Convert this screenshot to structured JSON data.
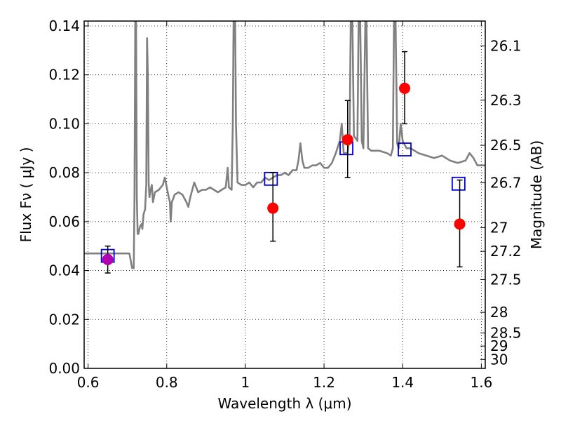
{
  "chart_data": {
    "type": "scatter",
    "xlabel": "Wavelength  λ (μm)",
    "ylabel": "Flux  Fν ( μJy )",
    "y2label": "Magnitude (AB)",
    "xlim": [
      0.59,
      1.61
    ],
    "ylim": [
      0.0,
      0.142
    ],
    "grid": true,
    "xticks": [
      {
        "value": 0.6,
        "label": "0.6"
      },
      {
        "value": 0.8,
        "label": "0.8"
      },
      {
        "value": 1.0,
        "label": "1"
      },
      {
        "value": 1.2,
        "label": "1.2"
      },
      {
        "value": 1.4,
        "label": "1.4"
      },
      {
        "value": 1.6,
        "label": "1.6"
      }
    ],
    "yticks": [
      {
        "value": 0.0,
        "label": "0.00"
      },
      {
        "value": 0.02,
        "label": "0.02"
      },
      {
        "value": 0.04,
        "label": "0.04"
      },
      {
        "value": 0.06,
        "label": "0.06"
      },
      {
        "value": 0.08,
        "label": "0.08"
      },
      {
        "value": 0.1,
        "label": "0.10"
      },
      {
        "value": 0.12,
        "label": "0.12"
      },
      {
        "value": 0.14,
        "label": "0.14"
      }
    ],
    "y2ticks": [
      {
        "mag": 26.1,
        "label": "26.1"
      },
      {
        "mag": 26.3,
        "label": "26.3"
      },
      {
        "mag": 26.5,
        "label": "26.5"
      },
      {
        "mag": 26.7,
        "label": "26.7"
      },
      {
        "mag": 27.0,
        "label": "27"
      },
      {
        "mag": 27.2,
        "label": "27.2"
      },
      {
        "mag": 27.5,
        "label": "27.5"
      },
      {
        "mag": 28.0,
        "label": "28"
      },
      {
        "mag": 28.5,
        "label": "28.5"
      },
      {
        "mag": 29.0,
        "label": "29"
      },
      {
        "mag": 30.0,
        "label": "30"
      }
    ],
    "colors": {
      "spectrum": "#808080",
      "observed": "#ff0000",
      "model": "#0000cc",
      "errorbar": "#000000",
      "overlap": "#b000b0"
    },
    "series": [
      {
        "kind": "model-spectrum",
        "points": [
          [
            0.59,
            0.047
          ],
          [
            0.63,
            0.047
          ],
          [
            0.66,
            0.047
          ],
          [
            0.69,
            0.047
          ],
          [
            0.705,
            0.047
          ],
          [
            0.712,
            0.041
          ],
          [
            0.716,
            0.041
          ],
          [
            0.718,
            0.07
          ],
          [
            0.72,
            0.142
          ],
          [
            0.722,
            0.142
          ],
          [
            0.724,
            0.07
          ],
          [
            0.726,
            0.055
          ],
          [
            0.728,
            0.055
          ],
          [
            0.732,
            0.058
          ],
          [
            0.736,
            0.059
          ],
          [
            0.738,
            0.057
          ],
          [
            0.741,
            0.063
          ],
          [
            0.745,
            0.065
          ],
          [
            0.748,
            0.075
          ],
          [
            0.75,
            0.135
          ],
          [
            0.752,
            0.12
          ],
          [
            0.754,
            0.076
          ],
          [
            0.756,
            0.07
          ],
          [
            0.758,
            0.072
          ],
          [
            0.762,
            0.075
          ],
          [
            0.765,
            0.068
          ],
          [
            0.77,
            0.072
          ],
          [
            0.78,
            0.073
          ],
          [
            0.79,
            0.075
          ],
          [
            0.795,
            0.078
          ],
          [
            0.8,
            0.074
          ],
          [
            0.805,
            0.07
          ],
          [
            0.808,
            0.068
          ],
          [
            0.81,
            0.06
          ],
          [
            0.813,
            0.068
          ],
          [
            0.82,
            0.071
          ],
          [
            0.83,
            0.072
          ],
          [
            0.84,
            0.071
          ],
          [
            0.85,
            0.068
          ],
          [
            0.855,
            0.066
          ],
          [
            0.86,
            0.07
          ],
          [
            0.87,
            0.076
          ],
          [
            0.875,
            0.074
          ],
          [
            0.88,
            0.072
          ],
          [
            0.89,
            0.073
          ],
          [
            0.9,
            0.073
          ],
          [
            0.91,
            0.074
          ],
          [
            0.92,
            0.073
          ],
          [
            0.93,
            0.072
          ],
          [
            0.94,
            0.073
          ],
          [
            0.95,
            0.074
          ],
          [
            0.955,
            0.082
          ],
          [
            0.958,
            0.074
          ],
          [
            0.965,
            0.073
          ],
          [
            0.968,
            0.1
          ],
          [
            0.97,
            0.142
          ],
          [
            0.974,
            0.142
          ],
          [
            0.976,
            0.1
          ],
          [
            0.98,
            0.076
          ],
          [
            0.99,
            0.075
          ],
          [
            1.0,
            0.075
          ],
          [
            1.01,
            0.076
          ],
          [
            1.02,
            0.074
          ],
          [
            1.03,
            0.076
          ],
          [
            1.04,
            0.076
          ],
          [
            1.05,
            0.078
          ],
          [
            1.06,
            0.077
          ],
          [
            1.07,
            0.078
          ],
          [
            1.08,
            0.079
          ],
          [
            1.09,
            0.079
          ],
          [
            1.1,
            0.08
          ],
          [
            1.11,
            0.079
          ],
          [
            1.12,
            0.081
          ],
          [
            1.13,
            0.081
          ],
          [
            1.135,
            0.085
          ],
          [
            1.14,
            0.092
          ],
          [
            1.145,
            0.085
          ],
          [
            1.15,
            0.082
          ],
          [
            1.16,
            0.082
          ],
          [
            1.17,
            0.083
          ],
          [
            1.18,
            0.083
          ],
          [
            1.19,
            0.084
          ],
          [
            1.2,
            0.082
          ],
          [
            1.21,
            0.082
          ],
          [
            1.22,
            0.084
          ],
          [
            1.23,
            0.088
          ],
          [
            1.24,
            0.093
          ],
          [
            1.245,
            0.1
          ],
          [
            1.25,
            0.088
          ],
          [
            1.26,
            0.088
          ],
          [
            1.265,
            0.095
          ],
          [
            1.268,
            0.142
          ],
          [
            1.272,
            0.142
          ],
          [
            1.276,
            0.095
          ],
          [
            1.285,
            0.093
          ],
          [
            1.288,
            0.142
          ],
          [
            1.292,
            0.142
          ],
          [
            1.296,
            0.093
          ],
          [
            1.3,
            0.09
          ],
          [
            1.305,
            0.142
          ],
          [
            1.308,
            0.142
          ],
          [
            1.312,
            0.09
          ],
          [
            1.32,
            0.089
          ],
          [
            1.34,
            0.089
          ],
          [
            1.36,
            0.088
          ],
          [
            1.37,
            0.087
          ],
          [
            1.375,
            0.09
          ],
          [
            1.378,
            0.142
          ],
          [
            1.382,
            0.142
          ],
          [
            1.386,
            0.092
          ],
          [
            1.39,
            0.09
          ],
          [
            1.395,
            0.1
          ],
          [
            1.4,
            0.093
          ],
          [
            1.41,
            0.09
          ],
          [
            1.42,
            0.09
          ],
          [
            1.44,
            0.088
          ],
          [
            1.46,
            0.087
          ],
          [
            1.48,
            0.086
          ],
          [
            1.5,
            0.087
          ],
          [
            1.52,
            0.085
          ],
          [
            1.54,
            0.084
          ],
          [
            1.56,
            0.085
          ],
          [
            1.57,
            0.088
          ],
          [
            1.58,
            0.086
          ],
          [
            1.59,
            0.083
          ],
          [
            1.6,
            0.083
          ],
          [
            1.61,
            0.083
          ]
        ]
      },
      {
        "kind": "observed",
        "points": [
          {
            "x": 0.65,
            "y": 0.0445,
            "ylo": 0.039,
            "yhi": 0.05
          },
          {
            "x": 1.07,
            "y": 0.0655,
            "ylo": 0.052,
            "yhi": 0.08
          },
          {
            "x": 1.26,
            "y": 0.0935,
            "ylo": 0.078,
            "yhi": 0.1095
          },
          {
            "x": 1.405,
            "y": 0.1145,
            "ylo": 0.1,
            "yhi": 0.1295
          },
          {
            "x": 1.545,
            "y": 0.059,
            "ylo": 0.0415,
            "yhi": 0.077
          }
        ]
      },
      {
        "kind": "model-photometry",
        "points": [
          {
            "x": 0.65,
            "y": 0.046
          },
          {
            "x": 1.065,
            "y": 0.0775
          },
          {
            "x": 1.257,
            "y": 0.09
          },
          {
            "x": 1.405,
            "y": 0.0895
          },
          {
            "x": 1.542,
            "y": 0.0755
          }
        ]
      }
    ]
  }
}
